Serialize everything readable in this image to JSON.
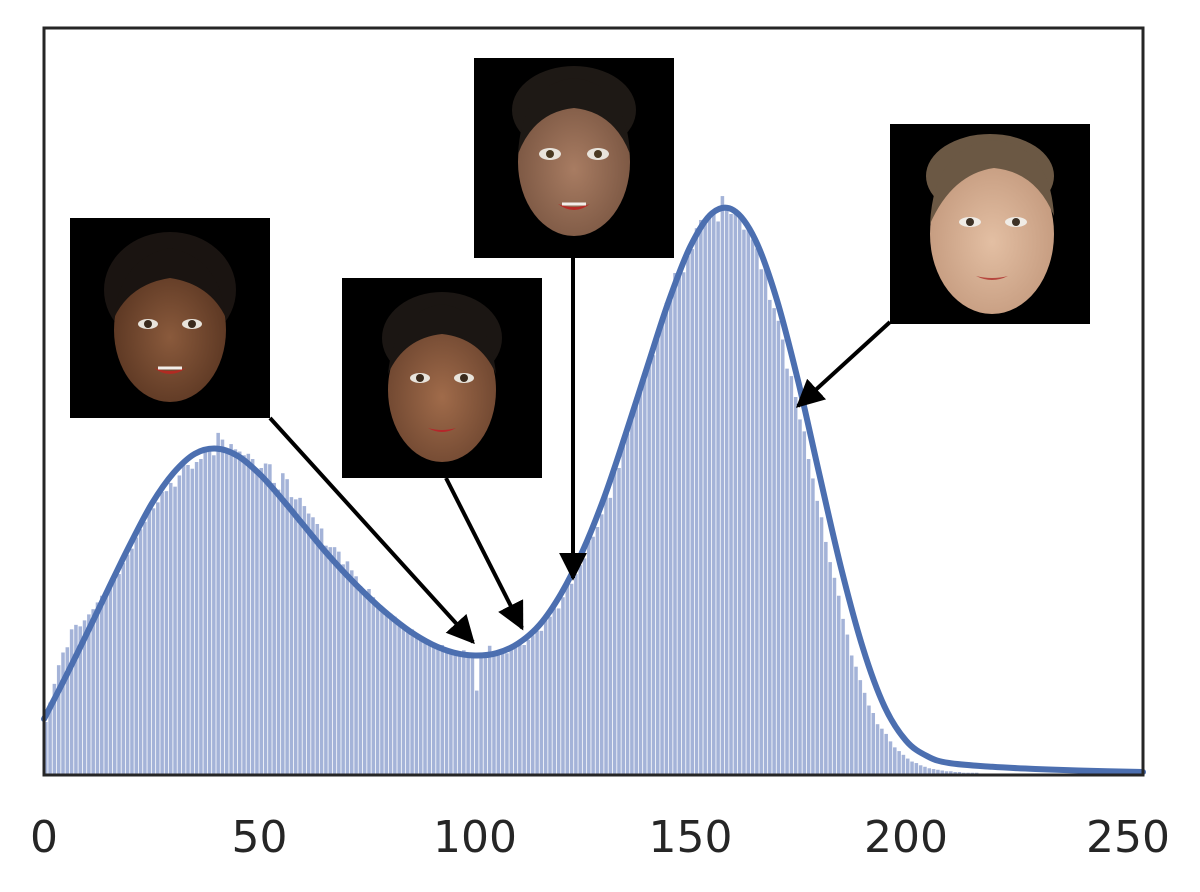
{
  "chart_data": {
    "type": "bar",
    "title": "",
    "xlabel": "",
    "ylabel": "",
    "xlim": [
      0,
      255
    ],
    "ylim": [
      0,
      1.0
    ],
    "grid": false,
    "legend": "none",
    "xticks": [
      0,
      50,
      100,
      150,
      200,
      250
    ],
    "xtick_labels": [
      "0",
      "50",
      "100",
      "150",
      "200",
      "250"
    ],
    "histogram": {
      "bin_width": 1,
      "counts": [
        0.071,
        0.097,
        0.122,
        0.147,
        0.164,
        0.171,
        0.195,
        0.201,
        0.199,
        0.207,
        0.215,
        0.222,
        0.231,
        0.24,
        0.246,
        0.253,
        0.262,
        0.269,
        0.284,
        0.295,
        0.303,
        0.318,
        0.329,
        0.339,
        0.353,
        0.357,
        0.365,
        0.379,
        0.38,
        0.391,
        0.386,
        0.401,
        0.418,
        0.415,
        0.41,
        0.419,
        0.423,
        0.435,
        0.44,
        0.428,
        0.458,
        0.449,
        0.436,
        0.443,
        0.436,
        0.433,
        0.428,
        0.43,
        0.423,
        0.41,
        0.411,
        0.417,
        0.416,
        0.391,
        0.382,
        0.404,
        0.396,
        0.372,
        0.369,
        0.371,
        0.36,
        0.35,
        0.345,
        0.336,
        0.33,
        0.307,
        0.305,
        0.305,
        0.299,
        0.282,
        0.286,
        0.274,
        0.266,
        0.253,
        0.241,
        0.249,
        0.238,
        0.23,
        0.224,
        0.219,
        0.216,
        0.212,
        0.201,
        0.199,
        0.193,
        0.195,
        0.19,
        0.183,
        0.183,
        0.176,
        0.177,
        0.171,
        0.174,
        0.166,
        0.165,
        0.166,
        0.162,
        0.167,
        0.161,
        0.161,
        0.113,
        0.162,
        0.16,
        0.173,
        0.16,
        0.165,
        0.168,
        0.163,
        0.17,
        0.176,
        0.175,
        0.174,
        0.181,
        0.187,
        0.193,
        0.193,
        0.207,
        0.212,
        0.223,
        0.223,
        0.238,
        0.253,
        0.256,
        0.269,
        0.281,
        0.29,
        0.313,
        0.319,
        0.332,
        0.349,
        0.377,
        0.371,
        0.414,
        0.411,
        0.451,
        0.457,
        0.48,
        0.506,
        0.52,
        0.536,
        0.557,
        0.562,
        0.588,
        0.612,
        0.632,
        0.645,
        0.672,
        0.669,
        0.673,
        0.695,
        0.704,
        0.732,
        0.743,
        0.738,
        0.751,
        0.755,
        0.741,
        0.775,
        0.758,
        0.751,
        0.756,
        0.748,
        0.73,
        0.735,
        0.717,
        0.705,
        0.677,
        0.68,
        0.636,
        0.625,
        0.608,
        0.583,
        0.544,
        0.534,
        0.506,
        0.476,
        0.46,
        0.423,
        0.397,
        0.367,
        0.345,
        0.312,
        0.285,
        0.264,
        0.24,
        0.209,
        0.188,
        0.16,
        0.145,
        0.127,
        0.11,
        0.093,
        0.083,
        0.068,
        0.062,
        0.055,
        0.045,
        0.037,
        0.032,
        0.027,
        0.022,
        0.018,
        0.016,
        0.013,
        0.011,
        0.009,
        0.008,
        0.007,
        0.006,
        0.005,
        0.005,
        0.004,
        0.004,
        0.003,
        0.003,
        0.003,
        0.003,
        0.002,
        0.002,
        0.002,
        0.002,
        0.002,
        0.002,
        0.002,
        0.002,
        0.002,
        0.002,
        0.002,
        0.001,
        0.001,
        0.001,
        0.001,
        0.001,
        0.001,
        0.001,
        0.001,
        0.001,
        0.001,
        0.001,
        0.001,
        0.001,
        0.001,
        0.001,
        0.001,
        0.001,
        0.001,
        0.001,
        0.001,
        0.001,
        0.001,
        0.001,
        0.001,
        0.001,
        0.001
      ]
    },
    "kde": {
      "x": [
        0,
        5,
        10,
        15,
        20,
        25,
        30,
        35,
        40,
        45,
        50,
        55,
        60,
        65,
        70,
        75,
        80,
        85,
        90,
        95,
        100,
        105,
        110,
        115,
        120,
        125,
        130,
        135,
        140,
        145,
        150,
        155,
        160,
        165,
        170,
        175,
        180,
        185,
        190,
        195,
        200,
        205,
        210,
        220,
        230,
        240,
        255
      ],
      "y": [
        0.075,
        0.131,
        0.19,
        0.25,
        0.309,
        0.363,
        0.404,
        0.43,
        0.437,
        0.427,
        0.403,
        0.371,
        0.336,
        0.301,
        0.269,
        0.24,
        0.214,
        0.192,
        0.175,
        0.164,
        0.16,
        0.163,
        0.176,
        0.201,
        0.243,
        0.3,
        0.372,
        0.457,
        0.547,
        0.635,
        0.708,
        0.752,
        0.756,
        0.717,
        0.637,
        0.527,
        0.4,
        0.276,
        0.17,
        0.092,
        0.046,
        0.025,
        0.016,
        0.011,
        0.008,
        0.006,
        0.004
      ]
    },
    "annotations": [
      {
        "image": "face-dark-brown-skin",
        "points_to_x": 100
      },
      {
        "image": "face-brown-skin-short-hair",
        "points_to_x": 111
      },
      {
        "image": "face-medium-brown-skin-pixie-hair",
        "points_to_x": 123
      },
      {
        "image": "face-light-skin-short-brown-hair",
        "points_to_x": 174
      }
    ],
    "colors": {
      "bars": "#a4b3d8",
      "line": "#4c6fb0",
      "axes": "#262626",
      "arrows": "#000000"
    }
  }
}
